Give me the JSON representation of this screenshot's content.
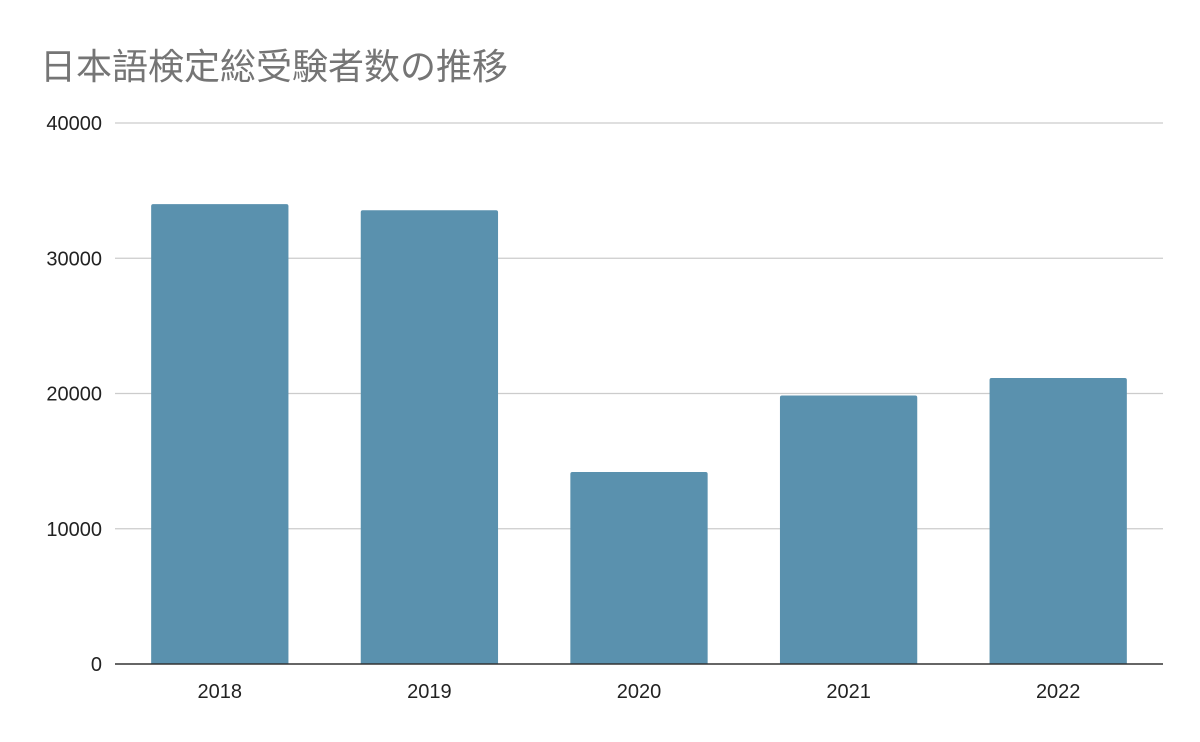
{
  "chart_data": {
    "type": "bar",
    "title": "日本語検定総受験者数の推移",
    "categories": [
      "2018",
      "2019",
      "2020",
      "2021",
      "2022"
    ],
    "values": [
      34000,
      33550,
      14200,
      19850,
      21150
    ],
    "ylim": [
      0,
      40000
    ],
    "yticks": [
      0,
      10000,
      20000,
      30000,
      40000
    ],
    "xlabel": "",
    "ylabel": "",
    "grid": true,
    "legend": "none",
    "colors": {
      "bar": "#5a91ae",
      "grid": "#cccccc",
      "axis": "#333333",
      "title": "#757575"
    }
  }
}
